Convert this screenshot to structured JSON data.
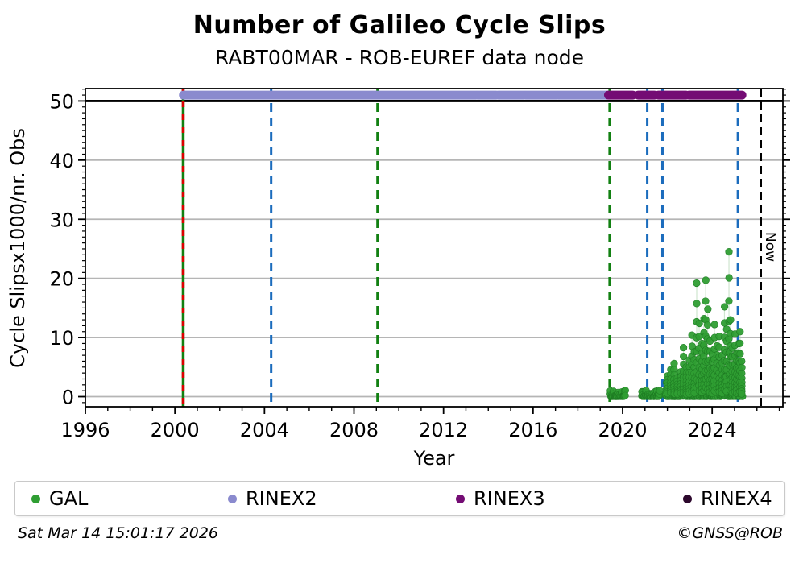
{
  "title": "Number of Galileo Cycle Slips",
  "subtitle": "RABT00MAR - ROB-EUREF data node",
  "footer": {
    "timestamp": "Sat Mar 14 15:01:17 2026",
    "credit": "©GNSS@ROB"
  },
  "palette": {
    "gal_green": "#2f9e33",
    "gal_green_edge": "#1e7c23",
    "rinex2_purple": "#8a8ace",
    "rinex3_magenta": "#740c74",
    "rinex4_dark": "#2d082d",
    "event_green": "#128012",
    "event_blue": "#1b6cbd",
    "event_red": "#dd0000",
    "now_black": "#000000",
    "grid_gray": "#b5b5b5",
    "stem_green": "#a8cfa8"
  },
  "legend": {
    "items": [
      {
        "label": "GAL",
        "color": "#2f9e33"
      },
      {
        "label": "RINEX2",
        "color": "#8a8ace"
      },
      {
        "label": "RINEX3",
        "color": "#740c74"
      },
      {
        "label": "RINEX4",
        "color": "#2d082d"
      }
    ]
  },
  "chart_data": {
    "type": "scatter",
    "title": "Number of Galileo Cycle Slips",
    "subtitle": "RABT00MAR - ROB-EUREF data node",
    "xlabel": "Year",
    "ylabel": "Cycle Slipsx1000/nr. Obs",
    "xlim": [
      1996,
      2027.16
    ],
    "ylim": [
      -1.7,
      52.1
    ],
    "xticks": [
      1996,
      2000,
      2004,
      2008,
      2012,
      2016,
      2020,
      2024
    ],
    "yticks": [
      0,
      10,
      20,
      30,
      40,
      50
    ],
    "minor_xtick_step_years": 1,
    "minor_ytick_step": 1,
    "grid": "horizontal",
    "legend_position": "bottom",
    "cap_line_y": 50,
    "now_line": {
      "x": 2026.18,
      "label": "Now",
      "style": "dashed",
      "color": "#000000"
    },
    "event_lines": [
      {
        "x": 2000.37,
        "style": "solid",
        "color": "#128012",
        "overlay": {
          "style": "dashed",
          "color": "#dd0000"
        }
      },
      {
        "x": 2004.3,
        "style": "dashed",
        "color": "#1b6cbd"
      },
      {
        "x": 2009.05,
        "style": "dashed",
        "color": "#128012"
      },
      {
        "x": 2019.42,
        "style": "dashed",
        "color": "#128012"
      },
      {
        "x": 2021.1,
        "style": "dashed",
        "color": "#1b6cbd"
      },
      {
        "x": 2021.78,
        "style": "dashed",
        "color": "#1b6cbd"
      },
      {
        "x": 2025.15,
        "style": "dashed",
        "color": "#1b6cbd"
      }
    ],
    "series": [
      {
        "name": "GAL",
        "kind": "scatter",
        "color": "#2f9e33",
        "baseline_segments": [
          {
            "from": 2019.45,
            "to": 2020.12,
            "max": 1.4
          },
          {
            "from": 2020.87,
            "to": 2021.66,
            "max": 1.8
          },
          {
            "from": 2021.9,
            "to": 2025.35,
            "max": 2.8
          }
        ],
        "spikes": [
          [
            2022.0,
            3.5
          ],
          [
            2022.15,
            4.6
          ],
          [
            2022.3,
            5.6
          ],
          [
            2022.45,
            3.2
          ],
          [
            2022.6,
            4.2
          ],
          [
            2022.72,
            8.3
          ],
          [
            2022.85,
            5.0
          ],
          [
            2022.98,
            6.2
          ],
          [
            2023.1,
            10.4
          ],
          [
            2023.2,
            7.6
          ],
          [
            2023.31,
            19.2
          ],
          [
            2023.42,
            12.4
          ],
          [
            2023.55,
            9.0
          ],
          [
            2023.63,
            13.2
          ],
          [
            2023.71,
            19.7
          ],
          [
            2023.8,
            14.8
          ],
          [
            2023.9,
            9.4
          ],
          [
            2024.0,
            7.2
          ],
          [
            2024.1,
            12.2
          ],
          [
            2024.22,
            8.6
          ],
          [
            2024.32,
            10.2
          ],
          [
            2024.45,
            7.0
          ],
          [
            2024.55,
            15.2
          ],
          [
            2024.64,
            11.4
          ],
          [
            2024.75,
            24.5
          ],
          [
            2024.82,
            13.0
          ],
          [
            2024.9,
            8.2
          ],
          [
            2025.02,
            10.6
          ],
          [
            2025.1,
            7.4
          ],
          [
            2025.18,
            9.0
          ],
          [
            2025.25,
            11.0
          ],
          [
            2025.32,
            6.0
          ]
        ],
        "max_point": [
          2024.75,
          24.5
        ]
      },
      {
        "name": "RINEX2",
        "kind": "coverage-band",
        "y": 51,
        "color": "#8a8ace",
        "segments": [
          [
            2000.38,
            2013.45
          ],
          [
            2013.52,
            2014.35
          ],
          [
            2014.45,
            2015.6
          ],
          [
            2015.67,
            2017.05
          ],
          [
            2017.12,
            2019.33
          ]
        ]
      },
      {
        "name": "RINEX3",
        "kind": "coverage-band",
        "y": 51,
        "color": "#740c74",
        "segments": [
          [
            2019.37,
            2020.45
          ],
          [
            2020.7,
            2021.42
          ],
          [
            2021.6,
            2022.83
          ],
          [
            2022.97,
            2025.33
          ]
        ]
      },
      {
        "name": "RINEX4",
        "kind": "coverage-band",
        "y": 51,
        "color": "#2d082d",
        "segments": []
      }
    ]
  }
}
